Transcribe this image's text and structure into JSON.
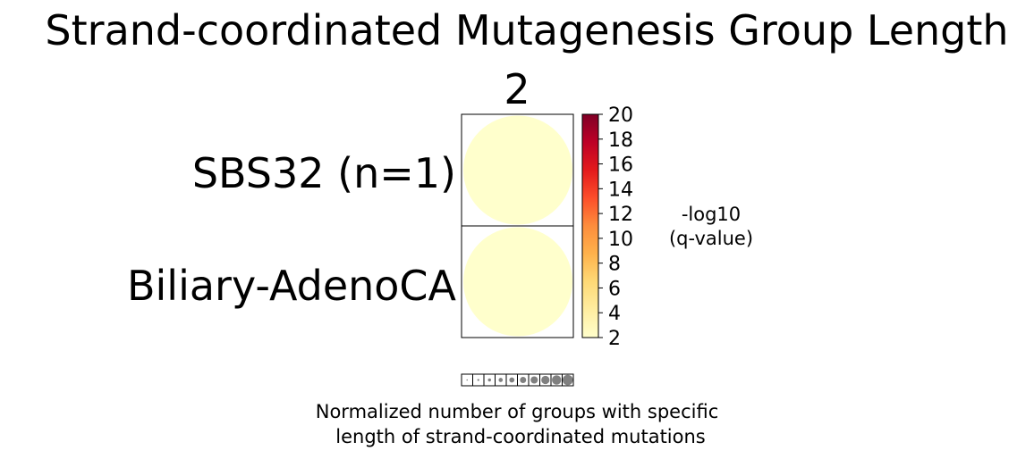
{
  "chart_data": {
    "type": "heatmap",
    "title": "Strand-coordinated Mutagenesis Group Length",
    "columns": [
      "2"
    ],
    "rows": [
      "SBS32 (n=1)",
      "Biliary-AdenoCA"
    ],
    "cells": [
      {
        "row": "SBS32 (n=1)",
        "column": "2",
        "neg_log10_q": 2,
        "normalized_size": 1.0
      },
      {
        "row": "Biliary-AdenoCA",
        "column": "2",
        "neg_log10_q": 2,
        "normalized_size": 1.0
      }
    ],
    "colorbar": {
      "label_lines": [
        "-log10",
        "(q-value)"
      ],
      "range": [
        2,
        20
      ],
      "ticks": [
        "2",
        "4",
        "6",
        "8",
        "10",
        "12",
        "14",
        "16",
        "18",
        "20"
      ],
      "colormap": [
        "#ffffcc",
        "#ffeda0",
        "#fed976",
        "#feb24c",
        "#fd8d3c",
        "#fc4e2a",
        "#e31a1c",
        "#bd0026",
        "#800026"
      ]
    },
    "size_legend": {
      "steps": [
        0.1,
        0.2,
        0.3,
        0.4,
        0.5,
        0.6,
        0.7,
        0.8,
        0.9,
        1.0
      ],
      "color": "#808080"
    },
    "xlabel_lines": [
      "Normalized number of groups with specific",
      "length of strand-coordinated mutations"
    ]
  }
}
